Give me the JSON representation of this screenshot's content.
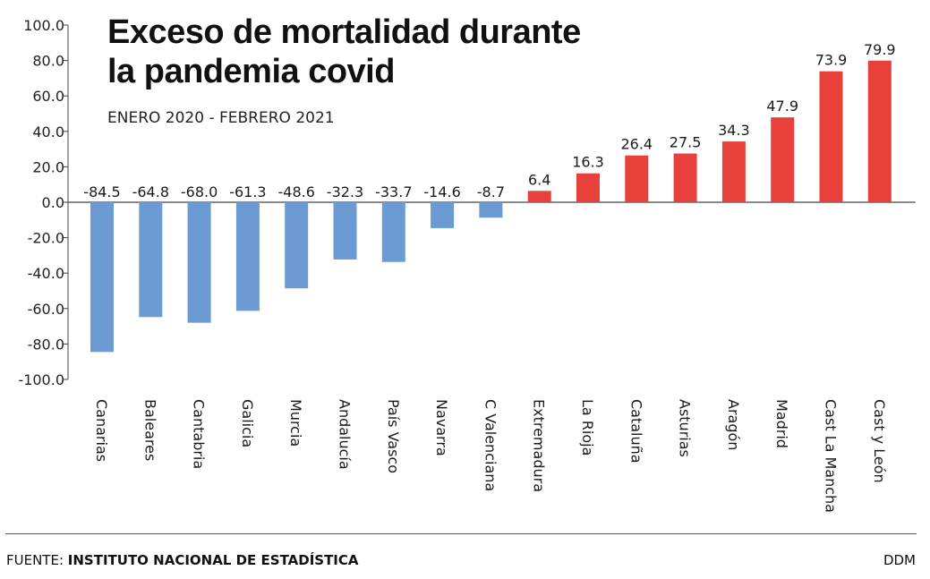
{
  "chart_data": {
    "type": "bar",
    "title_line1": "Exceso de mortalidad durante",
    "title_line2": "la pandemia covid",
    "subtitle": "ENERO 2020 - FEBRERO 2021",
    "categories": [
      "Canarias",
      "Baleares",
      "Cantabria",
      "Galicia",
      "Murcia",
      "Andalucía",
      "País Vasco",
      "Navarra",
      "C Valenciana",
      "Extremadura",
      "La Rioja",
      "Cataluña",
      "Asturias",
      "Aragón",
      "Madrid",
      "Cast La Mancha",
      "Cast y León"
    ],
    "values": [
      -84.5,
      -64.8,
      -68.0,
      -61.3,
      -48.6,
      -32.3,
      -33.7,
      -14.6,
      -8.7,
      6.4,
      16.3,
      26.4,
      27.5,
      34.3,
      47.9,
      73.9,
      79.9
    ],
    "value_labels": [
      "-84.5",
      "-64.8",
      "-68.0",
      "-61.3",
      "-48.6",
      "-32.3",
      "-33.7",
      "-14.6",
      "-8.7",
      "6.4",
      "16.3",
      "26.4",
      "27.5",
      "34.3",
      "47.9",
      "73.9",
      "79.9"
    ],
    "yticks": [
      "100.0",
      "80.0",
      "60.0",
      "40.0",
      "20.0",
      "0.0",
      "-20.0",
      "-40.0",
      "-60.0",
      "-80.0",
      "-100.0"
    ],
    "ylim": [
      -100,
      100
    ],
    "grid": false,
    "legend": "none",
    "colors": {
      "negative": "#6b9bd2",
      "positive": "#e8403b",
      "axis": "#444444"
    }
  },
  "footer": {
    "source_prefix": "FUENTE: ",
    "source_name": "INSTITUTO NACIONAL DE ESTADÍSTICA",
    "credit": "DDM"
  }
}
